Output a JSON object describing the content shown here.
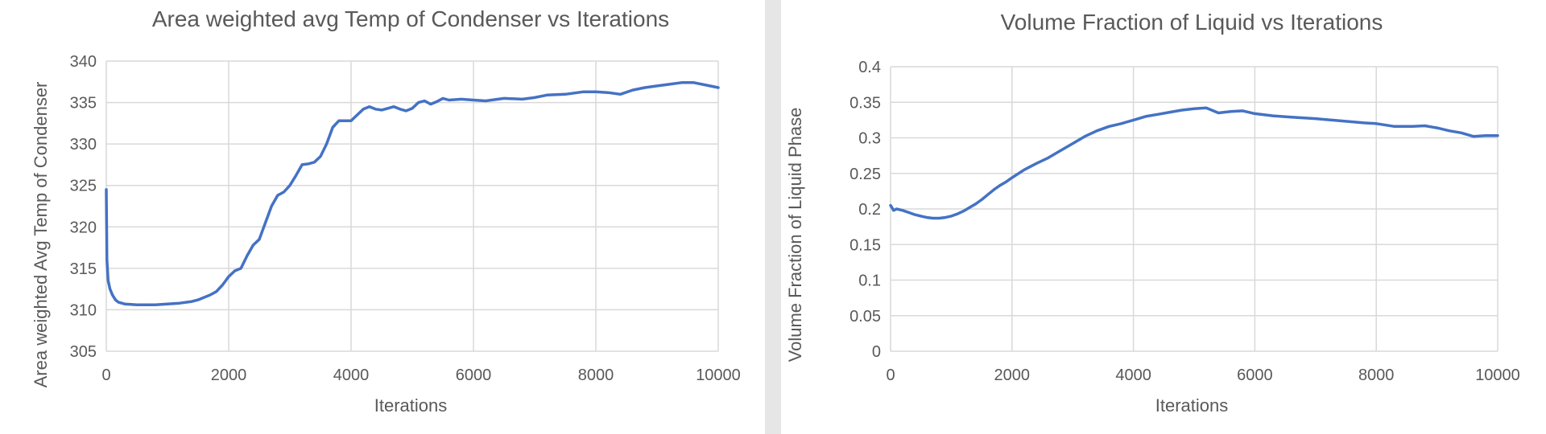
{
  "chart_data": [
    {
      "type": "line",
      "title": "Area weighted avg Temp of Condenser vs Iterations",
      "xlabel": "Iterations",
      "ylabel": "Area weighted Avg Temp of Condenser",
      "xlim": [
        0,
        10000
      ],
      "ylim": [
        305,
        340
      ],
      "xticks": [
        "0",
        "2000",
        "4000",
        "6000",
        "8000",
        "10000"
      ],
      "yticks": [
        "305",
        "310",
        "315",
        "320",
        "325",
        "330",
        "335",
        "340"
      ],
      "grid": true,
      "color": "#4472c4",
      "series": [
        {
          "x": [
            0,
            10,
            30,
            60,
            100,
            150,
            200,
            300,
            500,
            800,
            1000,
            1200,
            1400,
            1500,
            1600,
            1700,
            1800,
            1900,
            2000,
            2100,
            2200,
            2300,
            2400,
            2500,
            2600,
            2700,
            2800,
            2900,
            3000,
            3100,
            3200,
            3300,
            3400,
            3500,
            3600,
            3700,
            3800,
            3900,
            4000,
            4100,
            4200,
            4300,
            4400,
            4500,
            4600,
            4700,
            4800,
            4900,
            5000,
            5100,
            5200,
            5300,
            5400,
            5500,
            5600,
            5800,
            6000,
            6200,
            6500,
            6800,
            7000,
            7200,
            7500,
            7800,
            8000,
            8200,
            8400,
            8600,
            8800,
            9000,
            9200,
            9400,
            9600,
            9800,
            10000
          ],
          "values": [
            324.5,
            316,
            313.5,
            312.5,
            311.8,
            311.2,
            310.9,
            310.7,
            310.6,
            310.6,
            310.7,
            310.8,
            311,
            311.2,
            311.5,
            311.8,
            312.2,
            313,
            314,
            314.7,
            315,
            316.5,
            317.8,
            318.5,
            320.5,
            322.5,
            323.8,
            324.2,
            325,
            326.2,
            327.5,
            327.6,
            327.8,
            328.5,
            330,
            332,
            332.8,
            332.8,
            332.8,
            333.5,
            334.2,
            334.5,
            334.2,
            334.1,
            334.3,
            334.5,
            334.2,
            334,
            334.3,
            335,
            335.2,
            334.8,
            335.1,
            335.5,
            335.3,
            335.4,
            335.3,
            335.2,
            335.5,
            335.4,
            335.6,
            335.9,
            336,
            336.3,
            336.3,
            336.2,
            336.0,
            336.5,
            336.8,
            337,
            337.2,
            337.4,
            337.4,
            337.1,
            336.8
          ]
        }
      ]
    },
    {
      "type": "line",
      "title": "Volume Fraction of Liquid vs Iterations",
      "xlabel": "Iterations",
      "ylabel": "Volume Fraction of Liquid Phase",
      "xlim": [
        0,
        10000
      ],
      "ylim": [
        0,
        0.4
      ],
      "xticks": [
        "0",
        "2000",
        "4000",
        "6000",
        "8000",
        "10000"
      ],
      "yticks": [
        "0",
        "0.05",
        "0.1",
        "0.15",
        "0.2",
        "0.25",
        "0.3",
        "0.35",
        "0.4"
      ],
      "grid": true,
      "color": "#4472c4",
      "series": [
        {
          "x": [
            0,
            50,
            100,
            200,
            300,
            400,
            500,
            600,
            700,
            800,
            900,
            1000,
            1100,
            1200,
            1300,
            1400,
            1500,
            1600,
            1700,
            1800,
            1900,
            2000,
            2200,
            2400,
            2600,
            2800,
            3000,
            3200,
            3400,
            3600,
            3800,
            4000,
            4200,
            4400,
            4600,
            4800,
            5000,
            5200,
            5400,
            5600,
            5800,
            6000,
            6300,
            6600,
            7000,
            7400,
            7800,
            8000,
            8300,
            8600,
            8800,
            9000,
            9200,
            9400,
            9600,
            9800,
            10000
          ],
          "values": [
            0.205,
            0.198,
            0.2,
            0.198,
            0.195,
            0.192,
            0.19,
            0.188,
            0.187,
            0.187,
            0.188,
            0.19,
            0.193,
            0.197,
            0.202,
            0.207,
            0.213,
            0.22,
            0.227,
            0.233,
            0.238,
            0.244,
            0.255,
            0.264,
            0.272,
            0.282,
            0.292,
            0.302,
            0.31,
            0.316,
            0.32,
            0.325,
            0.33,
            0.333,
            0.336,
            0.339,
            0.341,
            0.342,
            0.335,
            0.337,
            0.338,
            0.334,
            0.331,
            0.329,
            0.327,
            0.324,
            0.321,
            0.32,
            0.316,
            0.316,
            0.317,
            0.314,
            0.31,
            0.307,
            0.302,
            0.303,
            0.303
          ]
        }
      ]
    }
  ]
}
